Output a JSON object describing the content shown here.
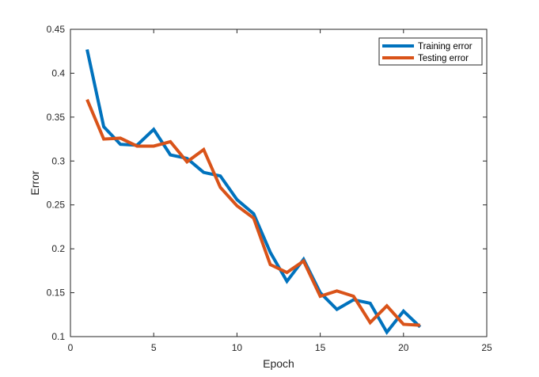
{
  "chart_data": {
    "type": "line",
    "xlabel": "Epoch",
    "ylabel": "Error",
    "xlim": [
      0,
      25
    ],
    "ylim": [
      0.1,
      0.45
    ],
    "xticks": [
      0,
      5,
      10,
      15,
      20,
      25
    ],
    "xtick_labels": [
      "0",
      "5",
      "10",
      "15",
      "20",
      "25"
    ],
    "yticks": [
      0.1,
      0.15,
      0.2,
      0.25,
      0.3,
      0.35,
      0.4,
      0.45
    ],
    "ytick_labels": [
      "0.1",
      "0.15",
      "0.2",
      "0.25",
      "0.3",
      "0.35",
      "0.4",
      "0.45"
    ],
    "grid": false,
    "legend_position": "top-right",
    "x": [
      1,
      2,
      3,
      4,
      5,
      6,
      7,
      8,
      9,
      10,
      11,
      12,
      13,
      14,
      15,
      16,
      17,
      18,
      19,
      20,
      21
    ],
    "series": [
      {
        "name": "Training error",
        "color": "#0072BD",
        "values": [
          0.427,
          0.339,
          0.319,
          0.318,
          0.336,
          0.307,
          0.303,
          0.287,
          0.283,
          0.256,
          0.24,
          0.196,
          0.163,
          0.188,
          0.15,
          0.131,
          0.142,
          0.138,
          0.105,
          0.129,
          0.111
        ]
      },
      {
        "name": "Testing error",
        "color": "#D95319",
        "values": [
          0.37,
          0.325,
          0.326,
          0.317,
          0.317,
          0.322,
          0.299,
          0.313,
          0.27,
          0.249,
          0.235,
          0.182,
          0.173,
          0.186,
          0.146,
          0.152,
          0.146,
          0.116,
          0.135,
          0.114,
          0.113
        ]
      }
    ]
  }
}
